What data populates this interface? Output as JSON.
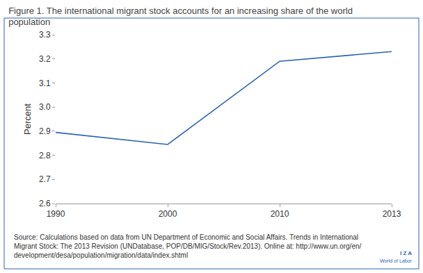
{
  "chart_data": {
    "type": "line",
    "title": "Figure 1. The international migrant stock accounts for an increasing share of the world\npopulation",
    "y_label": "Percent",
    "categories": [
      "1990",
      "2000",
      "2010",
      "2013"
    ],
    "values": [
      2.895,
      2.845,
      3.19,
      3.23
    ],
    "color": "#2b63b0",
    "ylim": [
      2.6,
      3.3
    ],
    "yticks": [
      2.6,
      2.7,
      2.8,
      2.9,
      {
        "value": 3,
        "label": "3.0"
      },
      3.1,
      3.2,
      3.3
    ],
    "grid": false,
    "annotations": [
      "Source: Calculations based on data from UN Department of Economic and Social Affairs. Trends in International\nMigrant Stock: The 2013 Revision (UNDatabase, POP/DB/MIG/Stock/Rev.2013). Online at: http://www.un.org/en/\ndevelopment/desa/population/migration/data/index.shtml",
      "I Z A",
      "World of Labor"
    ]
  }
}
